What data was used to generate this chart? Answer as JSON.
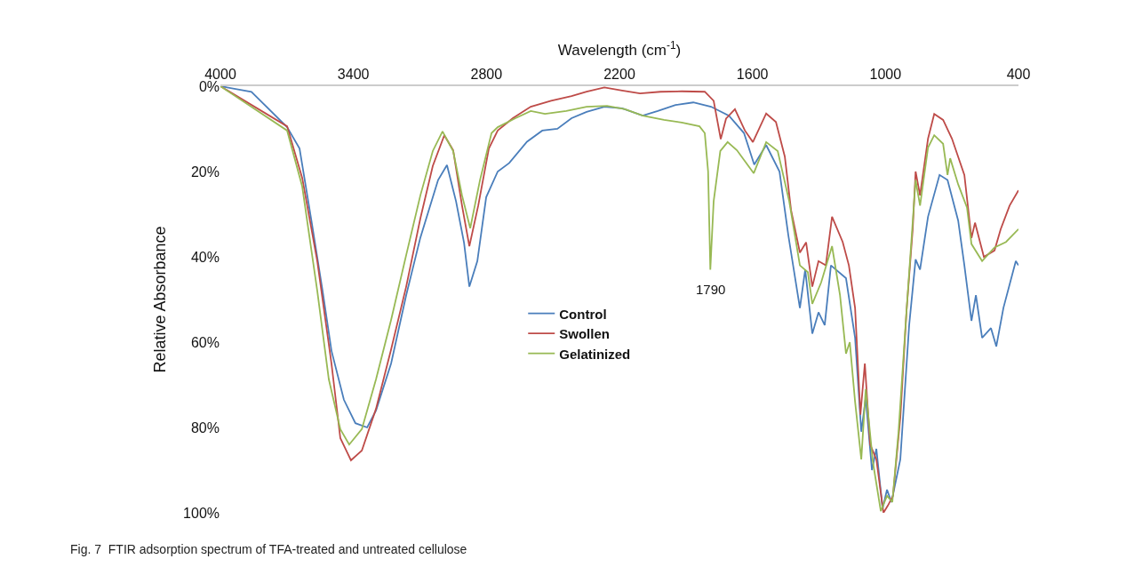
{
  "chart_data": {
    "type": "line",
    "xlabel": "Wavelength (cm$^{-1}$)",
    "ylabel": "Relative Absorbance",
    "xlim": [
      4000,
      400
    ],
    "xticks": [
      4000,
      3400,
      2800,
      2200,
      1600,
      1000,
      400
    ],
    "ylim": [
      100,
      0
    ],
    "yticks": [
      {
        "value": 0,
        "label": "0%"
      },
      {
        "value": 20,
        "label": "20%"
      },
      {
        "value": 40,
        "label": "40%"
      },
      {
        "value": 60,
        "label": "60%"
      },
      {
        "value": 80,
        "label": "80%"
      },
      {
        "value": 100,
        "label": "100%"
      }
    ],
    "grid": false,
    "legend": "center",
    "line_style": "solid",
    "marker": "none",
    "annotations": [
      {
        "text": "1790",
        "x": 1790,
        "y": 43
      },
      "Fig. 7  FTIR adsorption spectrum of TFA-treated and untreated cellulose"
    ],
    "series": [
      {
        "name": "Control",
        "color": "#4a7ebb",
        "x": [
          4000,
          3860,
          3699,
          3643,
          3591,
          3539,
          3499,
          3443,
          3391,
          3338,
          3298,
          3230,
          3162,
          3098,
          3018,
          2978,
          2937,
          2901,
          2877,
          2841,
          2801,
          2749,
          2697,
          2617,
          2548,
          2480,
          2416,
          2348,
          2268,
          2188,
          2095,
          2027,
          1947,
          1867,
          1787,
          1706,
          1638,
          1592,
          1538,
          1478,
          1438,
          1386,
          1362,
          1330,
          1302,
          1274,
          1246,
          1178,
          1137,
          1109,
          1089,
          1061,
          1041,
          1013,
          993,
          973,
          933,
          893,
          864,
          844,
          808,
          756,
          720,
          672,
          644,
          612,
          592,
          564,
          524,
          500,
          468,
          412,
          400
        ],
        "values": [
          0,
          1.3,
          9.6,
          14.6,
          31,
          48,
          62,
          73.5,
          79,
          80,
          76,
          65,
          49,
          35.5,
          22,
          18.5,
          27,
          36.7,
          47,
          41,
          26,
          20,
          18,
          13,
          10.4,
          10,
          7.5,
          6,
          4.8,
          5.2,
          6.9,
          5.8,
          4.4,
          3.8,
          4.8,
          6.9,
          11,
          18.4,
          13.8,
          20,
          35,
          52,
          43,
          58,
          53,
          56,
          42,
          45,
          59,
          81,
          73,
          90,
          85,
          99,
          94.6,
          97.5,
          87.5,
          56,
          40.6,
          43,
          30.6,
          20.8,
          22,
          31.5,
          42,
          55,
          49,
          59,
          56.7,
          61,
          52,
          41,
          42
        ]
      },
      {
        "name": "Swollen",
        "color": "#be4b48",
        "x": [
          4000,
          3699,
          3631,
          3563,
          3499,
          3459,
          3411,
          3362,
          3298,
          3230,
          3162,
          3098,
          3042,
          2990,
          2950,
          2910,
          2877,
          2837,
          2789,
          2749,
          2681,
          2600,
          2508,
          2416,
          2348,
          2268,
          2188,
          2107,
          2015,
          1919,
          1815,
          1775,
          1743,
          1719,
          1679,
          1634,
          1598,
          1538,
          1494,
          1454,
          1426,
          1386,
          1358,
          1330,
          1302,
          1269,
          1241,
          1193,
          1165,
          1137,
          1113,
          1093,
          1069,
          1041,
          1009,
          989,
          966,
          933,
          905,
          877,
          864,
          844,
          808,
          780,
          740,
          700,
          644,
          612,
          596,
          556,
          508,
          480,
          440,
          400
        ],
        "values": [
          0,
          9.4,
          21.5,
          41,
          65,
          82.5,
          87.7,
          85.4,
          75.6,
          61.7,
          47,
          31,
          18.7,
          11.5,
          15,
          28,
          37.5,
          28,
          14.6,
          10.4,
          7.5,
          4.8,
          3.4,
          2.3,
          1.3,
          0.3,
          1,
          1.7,
          1.3,
          1.2,
          1.3,
          3.4,
          12.4,
          7.6,
          5.4,
          10.4,
          13.1,
          6.4,
          8.4,
          16.5,
          29,
          39,
          36.6,
          47,
          41,
          42,
          30.6,
          36.5,
          42,
          52,
          77,
          65,
          84,
          87.5,
          100,
          98.3,
          96,
          77.7,
          52.7,
          33.5,
          20,
          25.6,
          12.3,
          6.5,
          7.9,
          12.3,
          20.8,
          35.6,
          32,
          40,
          38.5,
          33.5,
          28,
          24.4
        ]
      },
      {
        "name": "Gelatinized",
        "color": "#98b954",
        "x": [
          4000,
          3699,
          3631,
          3563,
          3511,
          3459,
          3419,
          3362,
          3298,
          3230,
          3162,
          3098,
          3042,
          2998,
          2950,
          2910,
          2873,
          2829,
          2777,
          2749,
          2669,
          2600,
          2536,
          2440,
          2348,
          2256,
          2175,
          2095,
          1999,
          1919,
          1839,
          1815,
          1800,
          1790,
          1775,
          1745,
          1712,
          1670,
          1638,
          1594,
          1538,
          1486,
          1434,
          1386,
          1350,
          1330,
          1290,
          1241,
          1205,
          1178,
          1161,
          1137,
          1109,
          1089,
          1057,
          1021,
          993,
          969,
          941,
          905,
          864,
          844,
          808,
          780,
          740,
          720,
          708,
          672,
          632,
          612,
          564,
          508,
          456,
          400
        ],
        "values": [
          0,
          10.4,
          23.5,
          48,
          68.7,
          80.4,
          84,
          80.4,
          68.7,
          54.8,
          39.6,
          25.6,
          15.2,
          10.6,
          15.2,
          25.6,
          33.3,
          22,
          11,
          9.6,
          7.5,
          5.8,
          6.5,
          5.8,
          4.8,
          4.6,
          5.4,
          6.9,
          7.9,
          8.5,
          9.4,
          11,
          20,
          43,
          27,
          15.2,
          13.1,
          15,
          17.3,
          20.4,
          13.1,
          15.2,
          27,
          42,
          43.6,
          51,
          46,
          37.5,
          49,
          62.7,
          60,
          74,
          87.5,
          71,
          88,
          99.6,
          96,
          97.5,
          81,
          52.7,
          22,
          28,
          14.4,
          11.5,
          13.5,
          20.8,
          16.9,
          23,
          28.5,
          37,
          41,
          37.8,
          36.5,
          33.5
        ]
      }
    ]
  }
}
